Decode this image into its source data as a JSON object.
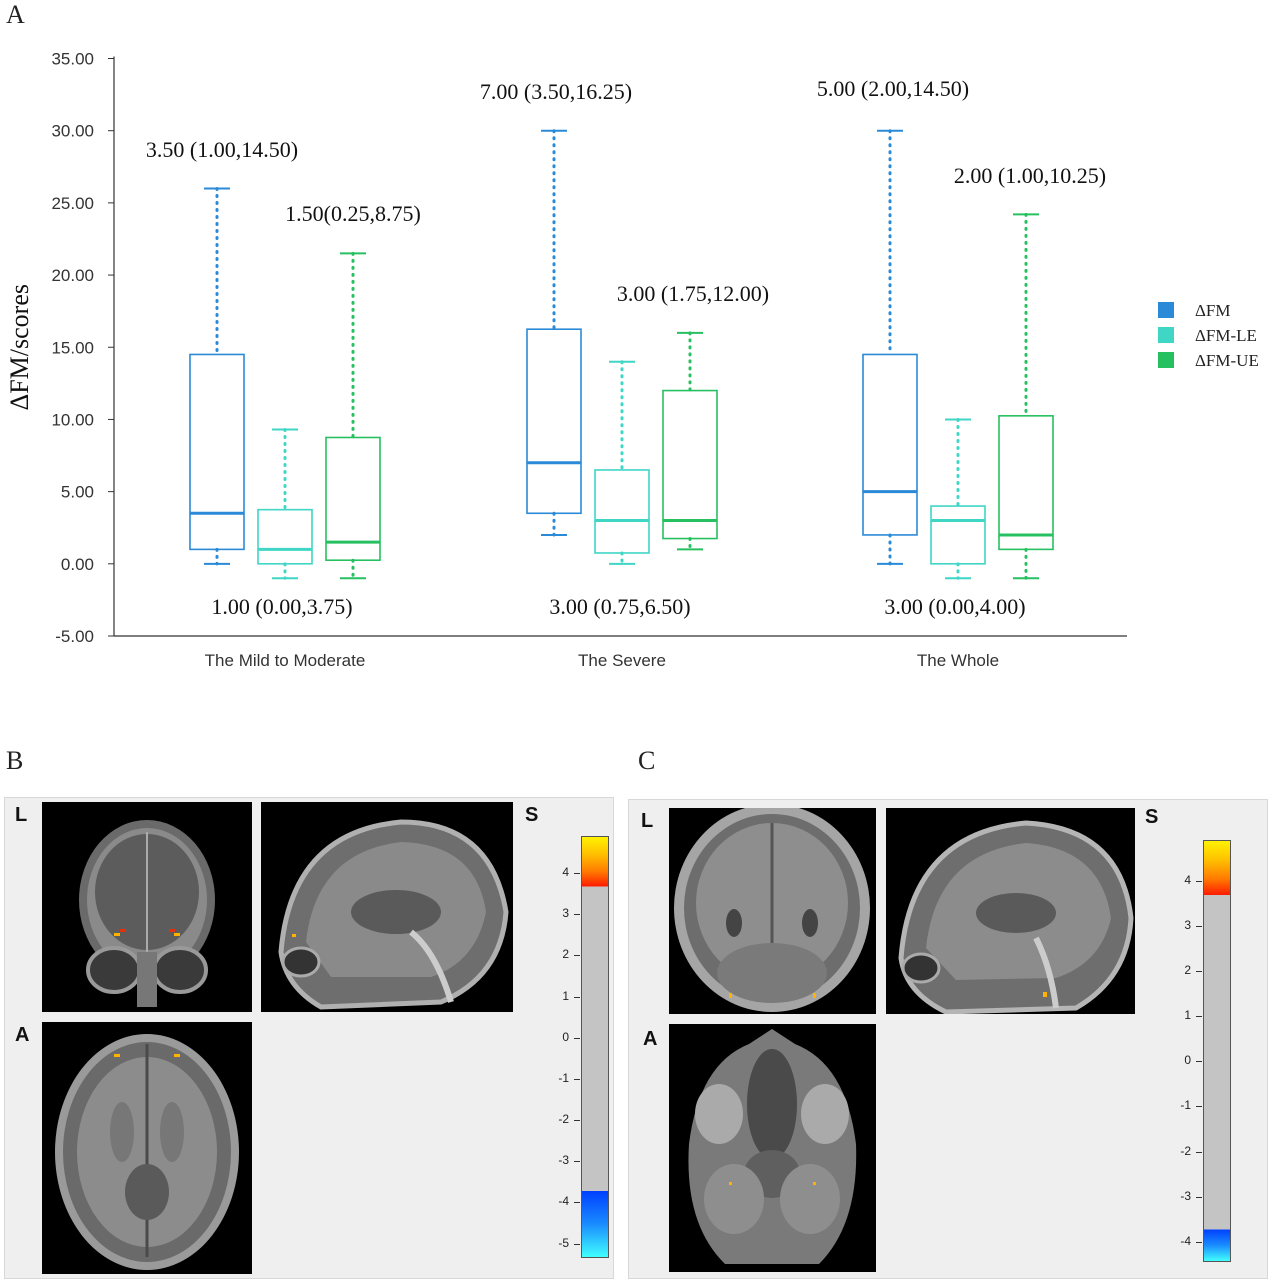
{
  "panels": {
    "a": "A",
    "b": "B",
    "c": "C"
  },
  "chart_data": {
    "type": "box",
    "ylabel": "ΔFM/scores",
    "ylim": [
      -5,
      35
    ],
    "yticks": [
      "35.00",
      "30.00",
      "25.00",
      "20.00",
      "15.00",
      "10.00",
      "5.00",
      "0.00",
      "-5.00"
    ],
    "ytick_values": [
      35,
      30,
      25,
      20,
      15,
      10,
      5,
      0,
      -5
    ],
    "categories": [
      "The Mild to Moderate",
      "The Severe",
      "The Whole"
    ],
    "legend_position": "right",
    "series": [
      {
        "name": "ΔFM",
        "color": "#2a8ad8",
        "boxes": [
          {
            "min": 0,
            "q1": 1.0,
            "median": 3.5,
            "q3": 14.5,
            "max": 26.0
          },
          {
            "min": 2.0,
            "q1": 3.5,
            "median": 7.0,
            "q3": 16.25,
            "max": 30.0
          },
          {
            "min": 0,
            "q1": 2.0,
            "median": 5.0,
            "q3": 14.5,
            "max": 30.0
          }
        ]
      },
      {
        "name": "ΔFM-LE",
        "color": "#3fd6c6",
        "boxes": [
          {
            "min": -1.0,
            "q1": 0.0,
            "median": 1.0,
            "q3": 3.75,
            "max": 9.3
          },
          {
            "min": 0,
            "q1": 0.75,
            "median": 3.0,
            "q3": 6.5,
            "max": 14.0
          },
          {
            "min": -1.0,
            "q1": 0.0,
            "median": 3.0,
            "q3": 4.0,
            "max": 10.0
          }
        ]
      },
      {
        "name": "ΔFM-UE",
        "color": "#27c060",
        "boxes": [
          {
            "min": -1.0,
            "q1": 0.25,
            "median": 1.5,
            "q3": 8.75,
            "max": 21.5
          },
          {
            "min": 1.0,
            "q1": 1.75,
            "median": 3.0,
            "q3": 12.0,
            "max": 16.0
          },
          {
            "min": -1.0,
            "q1": 1.0,
            "median": 2.0,
            "q3": 10.25,
            "max": 24.2
          }
        ]
      }
    ],
    "annotations": [
      "3.50 (1.00,14.50)",
      "1.50(0.25,8.75)",
      "1.00 (0.00,3.75)",
      "7.00 (3.50,16.25)",
      "3.00 (1.75,12.00)",
      "3.00 (0.75,6.50)",
      "5.00 (2.00,14.50)",
      "2.00 (1.00,10.25)",
      "3.00 (0.00,4.00)"
    ]
  },
  "panel_b": {
    "orient_l": "L",
    "orient_s": "S",
    "orient_a": "A",
    "colorbar_ticks": [
      "4",
      "3",
      "2",
      "1",
      "0",
      "-1",
      "-2",
      "-3",
      "-4",
      "-5"
    ],
    "colorbar_range": [
      -5.3,
      4.9
    ]
  },
  "panel_c": {
    "orient_l": "L",
    "orient_s": "S",
    "orient_a": "A",
    "colorbar_ticks": [
      "4",
      "3",
      "2",
      "1",
      "0",
      "-1",
      "-2",
      "-3",
      "-4"
    ],
    "colorbar_range": [
      -4.4,
      4.9
    ]
  }
}
